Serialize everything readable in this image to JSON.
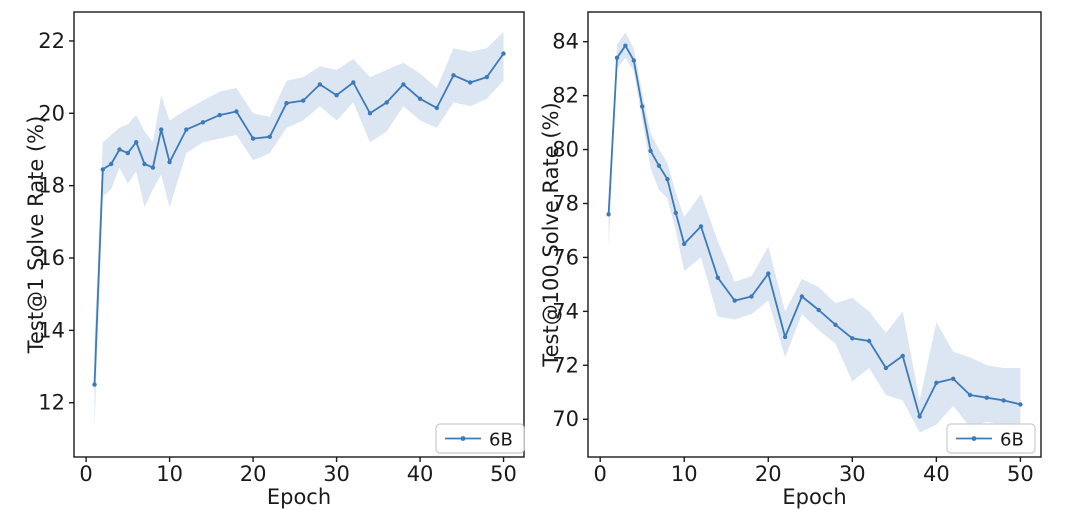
{
  "figure": {
    "background": "#ffffff",
    "line_color": "#3d7ab8",
    "band_color": "#dbe6f2",
    "marker_color": "#3d7ab8",
    "spine_color": "#1a1a1a",
    "text_color": "#1a1a1a",
    "legend_border_color": "#cccccc",
    "legend_background": "#ffffff"
  },
  "chart_data": [
    {
      "type": "line",
      "title": "",
      "xlabel": "Epoch",
      "ylabel": "Test@1 Solve Rate (%)",
      "legend": {
        "label": "6B",
        "position": "lower right"
      },
      "grid": false,
      "xlim": [
        -1.45,
        52.45
      ],
      "ylim": [
        10.5,
        22.8
      ],
      "xticks": [
        0,
        10,
        20,
        30,
        40,
        50
      ],
      "yticks": [
        12,
        14,
        16,
        18,
        20,
        22
      ],
      "x": [
        1,
        2,
        3,
        4,
        5,
        6,
        7,
        8,
        9,
        10,
        12,
        14,
        16,
        18,
        20,
        22,
        24,
        26,
        28,
        30,
        32,
        34,
        36,
        38,
        40,
        42,
        44,
        46,
        48,
        50
      ],
      "series": [
        {
          "name": "6B",
          "values": [
            12.5,
            18.45,
            18.6,
            19.0,
            18.9,
            19.2,
            18.6,
            18.5,
            19.55,
            18.65,
            19.55,
            19.75,
            19.95,
            20.05,
            19.3,
            19.35,
            20.28,
            20.35,
            20.8,
            20.5,
            20.85,
            20.0,
            20.3,
            20.8,
            20.4,
            20.15,
            21.05,
            20.85,
            21.0,
            21.65
          ],
          "band_low": [
            11.3,
            17.7,
            17.9,
            18.5,
            18.05,
            18.4,
            17.4,
            17.9,
            18.3,
            17.4,
            18.9,
            19.2,
            19.3,
            19.4,
            18.7,
            18.9,
            19.6,
            19.8,
            20.2,
            19.8,
            20.3,
            19.2,
            19.5,
            20.2,
            19.8,
            19.6,
            20.3,
            20.2,
            20.4,
            20.9
          ],
          "band_high": [
            13.7,
            19.2,
            19.4,
            19.6,
            19.7,
            19.95,
            19.5,
            19.2,
            20.5,
            19.8,
            20.1,
            20.35,
            20.6,
            20.7,
            20.0,
            19.9,
            20.9,
            21.0,
            21.3,
            21.2,
            21.5,
            21.0,
            21.2,
            21.4,
            21.1,
            20.7,
            21.8,
            21.7,
            21.8,
            22.25
          ]
        }
      ]
    },
    {
      "type": "line",
      "title": "",
      "xlabel": "Epoch",
      "ylabel": "Test@100 Solve Rate (%)",
      "legend": {
        "label": "6B",
        "position": "lower right"
      },
      "grid": false,
      "xlim": [
        -1.45,
        52.45
      ],
      "ylim": [
        68.6,
        85.1
      ],
      "xticks": [
        0,
        10,
        20,
        30,
        40,
        50
      ],
      "yticks": [
        70,
        72,
        74,
        76,
        78,
        80,
        82,
        84
      ],
      "x": [
        1,
        2,
        3,
        4,
        5,
        6,
        7,
        8,
        9,
        10,
        12,
        14,
        16,
        18,
        20,
        22,
        24,
        26,
        28,
        30,
        32,
        34,
        36,
        38,
        40,
        42,
        44,
        46,
        48,
        50
      ],
      "series": [
        {
          "name": "6B",
          "values": [
            77.6,
            83.4,
            83.85,
            83.3,
            81.6,
            79.95,
            79.4,
            78.9,
            77.65,
            76.5,
            77.15,
            75.25,
            74.4,
            74.55,
            75.4,
            73.05,
            74.55,
            74.05,
            73.5,
            73.0,
            72.9,
            71.9,
            72.35,
            70.1,
            71.35,
            71.5,
            70.9,
            70.8,
            70.7,
            70.55
          ],
          "band_low": [
            76.4,
            83.0,
            83.4,
            82.9,
            81.1,
            79.3,
            78.5,
            78.2,
            77.0,
            75.5,
            76.0,
            73.8,
            73.7,
            73.9,
            74.4,
            72.3,
            73.9,
            73.3,
            72.8,
            71.4,
            71.9,
            70.9,
            70.7,
            69.5,
            69.8,
            70.5,
            69.7,
            69.9,
            69.8,
            69.6
          ],
          "band_high": [
            78.0,
            83.9,
            84.35,
            83.75,
            82.1,
            80.6,
            80.0,
            79.5,
            78.4,
            77.5,
            78.35,
            76.6,
            75.1,
            75.3,
            76.4,
            74.0,
            75.2,
            74.9,
            74.3,
            74.5,
            74.0,
            73.2,
            74.0,
            70.7,
            73.6,
            72.5,
            72.3,
            72.0,
            71.9,
            71.9
          ]
        }
      ]
    }
  ]
}
